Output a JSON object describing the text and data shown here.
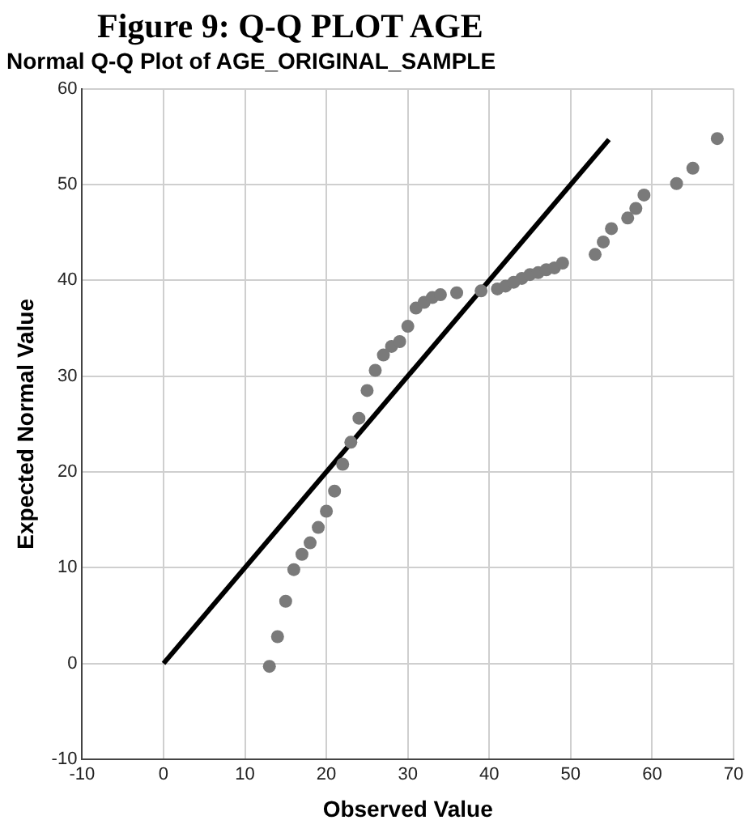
{
  "chart_data": {
    "type": "scatter",
    "title": "Figure 9: Q-Q PLOT AGE",
    "subtitle": "Normal Q-Q Plot of AGE_ORIGINAL_SAMPLE",
    "xlabel": "Observed Value",
    "ylabel": "Expected Normal Value",
    "xlim": [
      -10,
      70
    ],
    "ylim": [
      -10,
      60
    ],
    "xticks": [
      -10,
      0,
      10,
      20,
      30,
      40,
      50,
      60,
      70
    ],
    "yticks": [
      -10,
      0,
      10,
      20,
      30,
      40,
      50,
      60
    ],
    "grid": true,
    "legend": false,
    "marker": "circle",
    "series": [
      {
        "type": "scatter",
        "color": "#7a7a7a",
        "x": [
          13,
          14,
          15,
          16,
          17,
          18,
          19,
          20,
          21,
          22,
          23,
          24,
          25,
          26,
          27,
          28,
          29,
          30,
          31,
          32,
          33,
          34,
          36,
          39,
          41,
          42,
          43,
          44,
          45,
          46,
          47,
          48,
          49,
          53,
          54,
          55,
          57,
          58,
          59,
          63,
          65,
          68
        ],
        "values": [
          -0.3,
          2.8,
          6.5,
          9.8,
          11.4,
          12.6,
          14.2,
          15.9,
          18.0,
          20.8,
          23.1,
          25.6,
          28.5,
          30.6,
          32.2,
          33.1,
          33.6,
          35.2,
          37.1,
          37.7,
          38.2,
          38.5,
          38.7,
          38.9,
          39.1,
          39.4,
          39.8,
          40.2,
          40.6,
          40.8,
          41.1,
          41.3,
          41.8,
          42.7,
          44.0,
          45.4,
          46.5,
          47.5,
          48.9,
          50.1,
          51.7,
          54.8
        ]
      },
      {
        "type": "line",
        "color": "#000000",
        "marker": "none",
        "x": [
          0,
          54.7
        ],
        "values": [
          0,
          54.7
        ]
      }
    ]
  }
}
